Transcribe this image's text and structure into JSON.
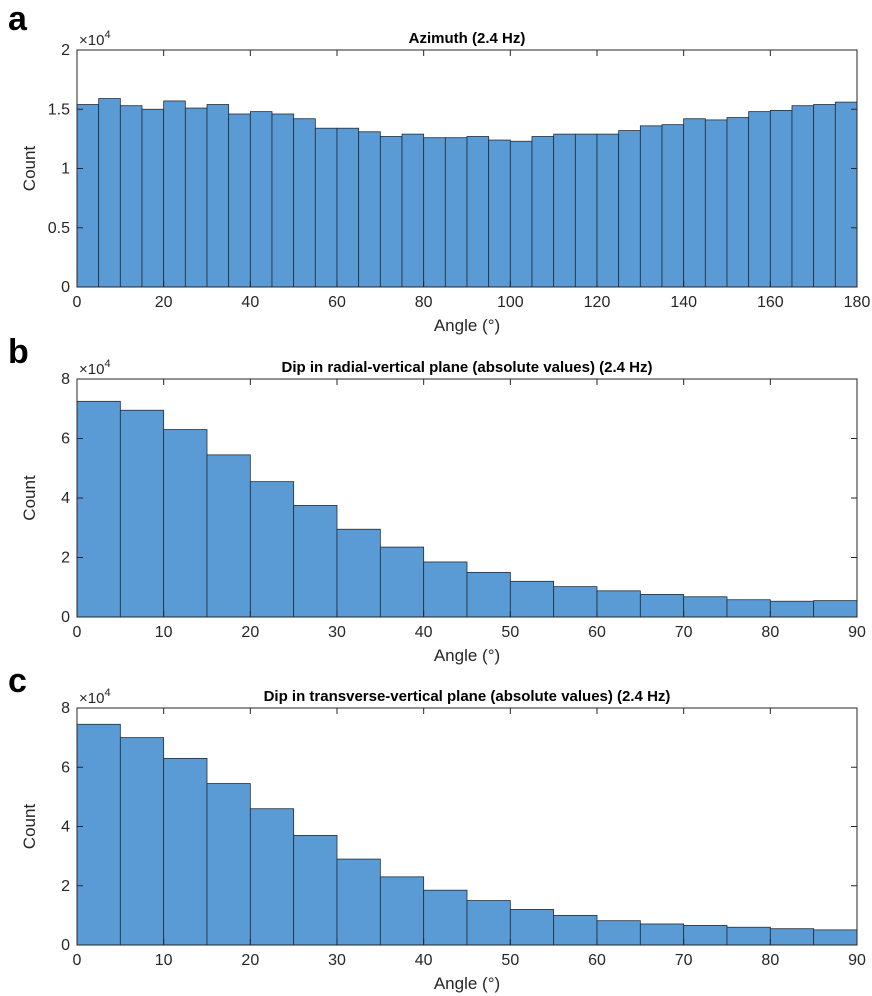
{
  "chart_data": [
    {
      "panel": "a",
      "type": "bar",
      "title": "Azimuth (2.4 Hz)",
      "xlabel": "Angle (°)",
      "ylabel": "Count",
      "y_multiplier": "×10",
      "y_multiplier_exp": "4",
      "xlim": [
        0,
        180
      ],
      "ylim": [
        0,
        20000
      ],
      "xticks": [
        0,
        20,
        40,
        60,
        80,
        100,
        120,
        140,
        160,
        180
      ],
      "yticks": [
        0,
        5000,
        10000,
        15000,
        20000
      ],
      "ytick_labels": [
        "0",
        "0.5",
        "1",
        "1.5",
        "2"
      ],
      "bin_width": 5,
      "bin_edges_start": 0,
      "values": [
        15400,
        15900,
        15300,
        15000,
        15700,
        15100,
        15400,
        14600,
        14800,
        14600,
        14200,
        13400,
        13400,
        13100,
        12700,
        12900,
        12600,
        12600,
        12700,
        12400,
        12300,
        12700,
        12900,
        12900,
        12900,
        13200,
        13600,
        13700,
        14200,
        14100,
        14300,
        14800,
        14900,
        15300,
        15400,
        15600
      ],
      "bar_color": "#5B9BD5",
      "grid": false
    },
    {
      "panel": "b",
      "type": "bar",
      "title": "Dip in radial-vertical plane (absolute values) (2.4 Hz)",
      "xlabel": "Angle (°)",
      "ylabel": "Count",
      "y_multiplier": "×10",
      "y_multiplier_exp": "4",
      "xlim": [
        0,
        90
      ],
      "ylim": [
        0,
        80000
      ],
      "xticks": [
        0,
        10,
        20,
        30,
        40,
        50,
        60,
        70,
        80,
        90
      ],
      "yticks": [
        0,
        20000,
        40000,
        60000,
        80000
      ],
      "ytick_labels": [
        "0",
        "2",
        "4",
        "6",
        "8"
      ],
      "bin_width": 5,
      "bin_edges_start": 0,
      "values": [
        72500,
        69500,
        63000,
        54500,
        45500,
        37500,
        29500,
        23500,
        18500,
        15000,
        12000,
        10200,
        8800,
        7600,
        6800,
        5800,
        5300,
        5500
      ],
      "bar_color": "#5B9BD5",
      "grid": false
    },
    {
      "panel": "c",
      "type": "bar",
      "title": "Dip in transverse-vertical plane (absolute values) (2.4 Hz)",
      "xlabel": "Angle (°)",
      "ylabel": "Count",
      "y_multiplier": "×10",
      "y_multiplier_exp": "4",
      "xlim": [
        0,
        90
      ],
      "ylim": [
        0,
        80000
      ],
      "xticks": [
        0,
        10,
        20,
        30,
        40,
        50,
        60,
        70,
        80,
        90
      ],
      "yticks": [
        0,
        20000,
        40000,
        60000,
        80000
      ],
      "ytick_labels": [
        "0",
        "2",
        "4",
        "6",
        "8"
      ],
      "bin_width": 5,
      "bin_edges_start": 0,
      "values": [
        74500,
        70000,
        63000,
        54500,
        46000,
        37000,
        29000,
        23000,
        18500,
        15000,
        12000,
        10000,
        8200,
        7100,
        6600,
        6000,
        5500,
        5100
      ],
      "bar_color": "#5B9BD5",
      "grid": false
    }
  ]
}
